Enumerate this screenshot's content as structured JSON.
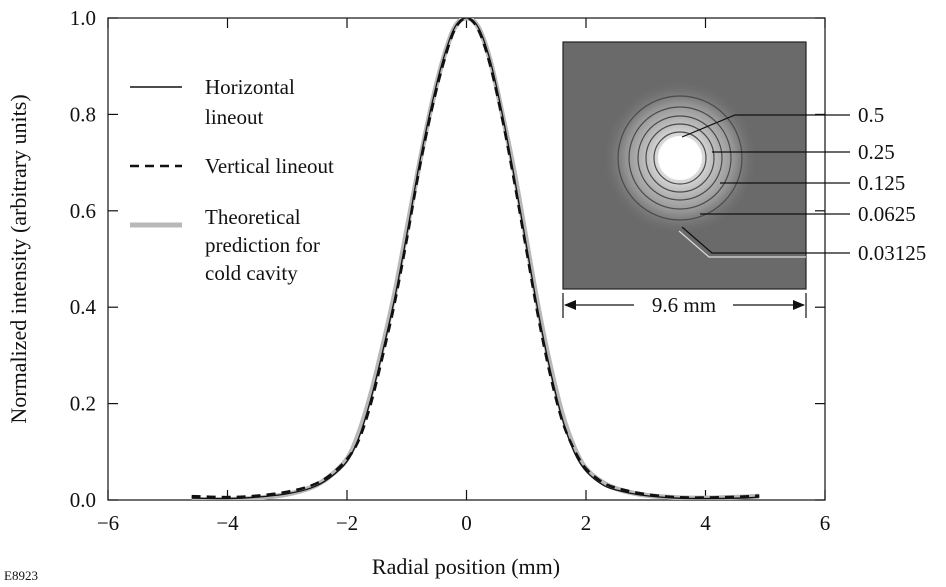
{
  "figure_id": "E8923",
  "chart_data": {
    "type": "line",
    "xlabel": "Radial position (mm)",
    "ylabel": "Normalized intensity (arbitrary units)",
    "xlim": [
      -6,
      6
    ],
    "ylim": [
      0,
      1.0
    ],
    "xticks": [
      "−6",
      "−4",
      "−2",
      "0",
      "2",
      "4",
      "6"
    ],
    "yticks": [
      "0.0",
      "0.2",
      "0.4",
      "0.6",
      "0.8",
      "1.0"
    ],
    "grid": false,
    "legend_position": "top-left",
    "series": [
      {
        "name": "Horizontal lineout",
        "style": "solid-thin",
        "color": "#111111",
        "x": [
          -4.6,
          -4.0,
          -3.5,
          -3.0,
          -2.6,
          -2.3,
          -2.0,
          -1.8,
          -1.6,
          -1.4,
          -1.2,
          -1.0,
          -0.8,
          -0.6,
          -0.4,
          -0.2,
          0.0,
          0.2,
          0.4,
          0.6,
          0.8,
          1.0,
          1.2,
          1.4,
          1.6,
          1.8,
          2.0,
          2.3,
          2.6,
          3.0,
          3.5,
          4.0,
          4.6,
          4.9
        ],
        "y": [
          0.004,
          0.003,
          0.006,
          0.013,
          0.025,
          0.045,
          0.08,
          0.13,
          0.21,
          0.31,
          0.42,
          0.55,
          0.69,
          0.81,
          0.91,
          0.98,
          1.0,
          0.98,
          0.91,
          0.8,
          0.67,
          0.53,
          0.39,
          0.27,
          0.17,
          0.1,
          0.06,
          0.03,
          0.018,
          0.009,
          0.004,
          0.003,
          0.004,
          0.006
        ]
      },
      {
        "name": "Vertical lineout",
        "style": "dashed",
        "color": "#111111",
        "x": [
          -4.6,
          -4.0,
          -3.5,
          -3.0,
          -2.6,
          -2.3,
          -2.0,
          -1.8,
          -1.6,
          -1.4,
          -1.2,
          -1.0,
          -0.8,
          -0.6,
          -0.4,
          -0.2,
          0.0,
          0.2,
          0.4,
          0.6,
          0.8,
          1.0,
          1.2,
          1.4,
          1.6,
          1.8,
          2.0,
          2.3,
          2.6,
          3.0,
          3.5,
          4.0,
          4.6,
          4.9
        ],
        "y": [
          0.008,
          0.006,
          0.009,
          0.017,
          0.03,
          0.05,
          0.085,
          0.125,
          0.2,
          0.3,
          0.41,
          0.54,
          0.68,
          0.8,
          0.9,
          0.975,
          1.0,
          0.975,
          0.9,
          0.79,
          0.66,
          0.52,
          0.38,
          0.26,
          0.165,
          0.105,
          0.065,
          0.035,
          0.022,
          0.012,
          0.006,
          0.005,
          0.007,
          0.009
        ]
      },
      {
        "name": "Theoretical prediction for cold cavity",
        "style": "solid-thick",
        "color": "#b8b8b8",
        "x": [
          -4.6,
          -4.0,
          -3.5,
          -3.0,
          -2.6,
          -2.3,
          -2.0,
          -1.8,
          -1.6,
          -1.4,
          -1.2,
          -1.0,
          -0.8,
          -0.6,
          -0.4,
          -0.2,
          0.0,
          0.2,
          0.4,
          0.6,
          0.8,
          1.0,
          1.2,
          1.4,
          1.6,
          1.8,
          2.0,
          2.3,
          2.6,
          3.0,
          3.5,
          4.0,
          4.6,
          4.9
        ],
        "y": [
          0.0,
          0.001,
          0.004,
          0.012,
          0.026,
          0.048,
          0.085,
          0.14,
          0.22,
          0.32,
          0.43,
          0.56,
          0.69,
          0.81,
          0.91,
          0.98,
          1.0,
          0.98,
          0.91,
          0.8,
          0.68,
          0.54,
          0.4,
          0.28,
          0.18,
          0.11,
          0.065,
          0.035,
          0.02,
          0.01,
          0.005,
          0.004,
          0.006,
          0.008
        ]
      }
    ],
    "legend": {
      "horizontal": [
        "Horizontal",
        "lineout"
      ],
      "vertical": [
        "Vertical lineout"
      ],
      "theory": [
        "Theoretical",
        "prediction for",
        "cold cavity"
      ]
    },
    "inset": {
      "contour_labels": [
        "0.5",
        "0.25",
        "0.125",
        "0.0625",
        "0.03125"
      ],
      "scale_label": "9.6 mm",
      "background_color": "#6a6a6a"
    }
  }
}
